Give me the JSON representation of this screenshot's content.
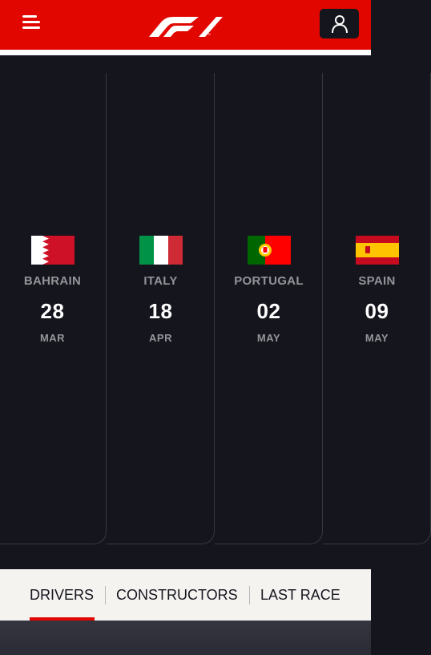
{
  "header": {
    "menu_icon": "hamburger-menu-icon",
    "logo_icon": "f1-logo",
    "user_icon": "user-account-icon",
    "colors": {
      "brand": "#e10600",
      "dark": "#15151e"
    }
  },
  "races": [
    {
      "country": "BAHRAIN",
      "day": "28",
      "month": "MAR",
      "flag_icon": "bahrain-flag-icon"
    },
    {
      "country": "ITALY",
      "day": "18",
      "month": "APR",
      "flag_icon": "italy-flag-icon"
    },
    {
      "country": "PORTUGAL",
      "day": "02",
      "month": "MAY",
      "flag_icon": "portugal-flag-icon"
    },
    {
      "country": "SPAIN",
      "day": "09",
      "month": "MAY",
      "flag_icon": "spain-flag-icon"
    }
  ],
  "tabs": [
    {
      "label": "DRIVERS",
      "active": true
    },
    {
      "label": "CONSTRUCTORS",
      "active": false
    },
    {
      "label": "LAST RACE",
      "active": false
    }
  ]
}
